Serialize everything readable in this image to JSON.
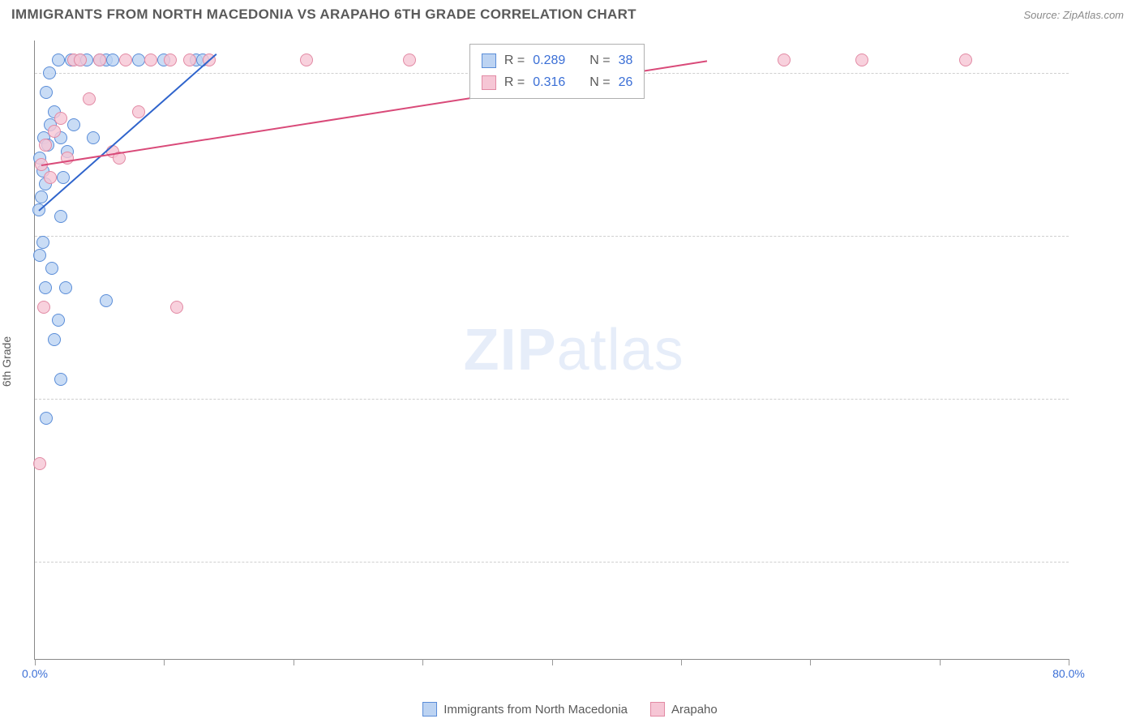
{
  "header": {
    "title": "IMMIGRANTS FROM NORTH MACEDONIA VS ARAPAHO 6TH GRADE CORRELATION CHART",
    "source": "Source: ZipAtlas.com"
  },
  "watermark": {
    "bold": "ZIP",
    "light": "atlas"
  },
  "chart": {
    "type": "scatter",
    "yaxis_title": "6th Grade",
    "xlim": [
      0,
      80
    ],
    "ylim": [
      91.0,
      100.5
    ],
    "xticks": [
      0,
      10,
      20,
      30,
      40,
      50,
      60,
      70,
      80
    ],
    "xlabel_at": {
      "0": "0.0%",
      "80": "80.0%"
    },
    "yticks": [
      92.5,
      95.0,
      97.5,
      100.0
    ],
    "ylabel_format": {
      "92.5": "92.5%",
      "95.0": "95.0%",
      "97.5": "97.5%",
      "100.0": "100.0%"
    },
    "background_color": "#ffffff",
    "grid_color": "#cfcfcf",
    "axis_color": "#888888",
    "label_color": "#3b6fd6",
    "marker_radius": 8,
    "marker_stroke_width": 1.3,
    "series": [
      {
        "name": "Immigrants from North Macedonia",
        "fill": "#bcd3f2cc",
        "stroke": "#5a8dd8",
        "trend_color": "#2f64cc",
        "R": "0.289",
        "N": "38",
        "trend": {
          "x1": 0.3,
          "y1": 97.9,
          "x2": 14.0,
          "y2": 100.3
        },
        "points": [
          [
            0.3,
            97.9
          ],
          [
            0.5,
            98.1
          ],
          [
            0.6,
            98.5
          ],
          [
            0.8,
            98.3
          ],
          [
            0.4,
            98.7
          ],
          [
            0.7,
            99.0
          ],
          [
            1.0,
            98.9
          ],
          [
            1.2,
            99.2
          ],
          [
            1.5,
            99.4
          ],
          [
            0.9,
            99.7
          ],
          [
            1.1,
            100.0
          ],
          [
            1.8,
            100.2
          ],
          [
            2.0,
            99.0
          ],
          [
            2.2,
            98.4
          ],
          [
            2.5,
            98.8
          ],
          [
            2.8,
            100.2
          ],
          [
            3.0,
            99.2
          ],
          [
            3.5,
            100.2
          ],
          [
            4.0,
            100.2
          ],
          [
            4.5,
            99.0
          ],
          [
            5.0,
            100.2
          ],
          [
            5.5,
            100.2
          ],
          [
            6.0,
            100.2
          ],
          [
            8.0,
            100.2
          ],
          [
            10.0,
            100.2
          ],
          [
            12.5,
            100.2
          ],
          [
            2.0,
            97.8
          ],
          [
            0.4,
            97.2
          ],
          [
            0.6,
            97.4
          ],
          [
            1.3,
            97.0
          ],
          [
            0.8,
            96.7
          ],
          [
            2.4,
            96.7
          ],
          [
            1.8,
            96.2
          ],
          [
            2.0,
            95.3
          ],
          [
            1.5,
            95.9
          ],
          [
            0.9,
            94.7
          ],
          [
            5.5,
            96.5
          ],
          [
            13.0,
            100.2
          ]
        ]
      },
      {
        "name": "Arapaho",
        "fill": "#f6c6d5cc",
        "stroke": "#e28aa4",
        "trend_color": "#d94a79",
        "R": "0.316",
        "N": "26",
        "trend": {
          "x1": 0.5,
          "y1": 98.6,
          "x2": 52.0,
          "y2": 100.2
        },
        "points": [
          [
            0.5,
            98.6
          ],
          [
            0.8,
            98.9
          ],
          [
            1.2,
            98.4
          ],
          [
            1.5,
            99.1
          ],
          [
            2.0,
            99.3
          ],
          [
            2.5,
            98.7
          ],
          [
            3.0,
            100.2
          ],
          [
            3.5,
            100.2
          ],
          [
            4.2,
            99.6
          ],
          [
            5.0,
            100.2
          ],
          [
            6.0,
            98.8
          ],
          [
            7.0,
            100.2
          ],
          [
            8.0,
            99.4
          ],
          [
            9.0,
            100.2
          ],
          [
            10.5,
            100.2
          ],
          [
            12.0,
            100.2
          ],
          [
            13.5,
            100.2
          ],
          [
            21.0,
            100.2
          ],
          [
            29.0,
            100.2
          ],
          [
            58.0,
            100.2
          ],
          [
            64.0,
            100.2
          ],
          [
            72.0,
            100.2
          ],
          [
            11.0,
            96.4
          ],
          [
            0.7,
            96.4
          ],
          [
            0.4,
            94.0
          ],
          [
            6.5,
            98.7
          ]
        ]
      }
    ]
  },
  "stat_box": {
    "rows": [
      {
        "swatch_fill": "#bcd3f2",
        "swatch_stroke": "#5a8dd8",
        "r_label": "R =",
        "r_val": "0.289",
        "n_label": "N =",
        "n_val": "38"
      },
      {
        "swatch_fill": "#f6c6d5",
        "swatch_stroke": "#e28aa4",
        "r_label": "R =",
        "r_val": "0.316",
        "n_label": "N =",
        "n_val": "26"
      }
    ]
  },
  "bottom_legend": {
    "items": [
      {
        "swatch_fill": "#bcd3f2",
        "swatch_stroke": "#5a8dd8",
        "label": "Immigrants from North Macedonia"
      },
      {
        "swatch_fill": "#f6c6d5",
        "swatch_stroke": "#e28aa4",
        "label": "Arapaho"
      }
    ]
  }
}
